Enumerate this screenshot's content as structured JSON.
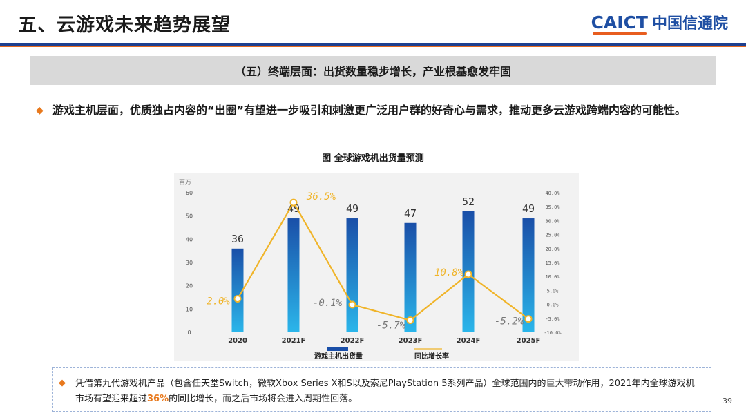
{
  "header": {
    "title": "五、云游戏未来趋势展望",
    "logo_en": "CAICT",
    "logo_cn": "中国信通院"
  },
  "banner": {
    "text": "（五）终端层面：出货数量稳步增长，产业根基愈发牢固"
  },
  "bullet": {
    "text": "游戏主机层面，优质独占内容的“出圈”有望进一步吸引和刺激更广泛用户群的好奇心与需求，推动更多云游戏跨端内容的可能性。"
  },
  "figure": {
    "caption": "图  全球游戏机出货量预测"
  },
  "colors": {
    "bar_top": "#1a4fa8",
    "bar_bottom": "#2bb6ea",
    "line": "#f0b429",
    "accent": "#e8791d",
    "brand": "#1f4fa3"
  },
  "chart_data": {
    "type": "bar+line",
    "categories": [
      "2020",
      "2021F",
      "2022F",
      "2023F",
      "2024F",
      "2025F"
    ],
    "series": [
      {
        "name": "游戏主机出货量",
        "type": "bar",
        "axis": "left",
        "values": [
          36,
          49,
          49,
          47,
          52,
          49
        ],
        "labels": [
          "36",
          "49",
          "49",
          "47",
          "52",
          "49"
        ]
      },
      {
        "name": "同比增长率",
        "type": "line",
        "axis": "right",
        "values": [
          2.0,
          36.5,
          -0.1,
          -5.7,
          10.8,
          -5.2
        ],
        "labels": [
          "2.0%",
          "36.5%",
          "-0.1%",
          "-5.7%",
          "10.8%",
          "-5.2%"
        ]
      }
    ],
    "left_axis": {
      "unit": "百万",
      "min": 0,
      "max": 60,
      "ticks": [
        "0",
        "10",
        "20",
        "30",
        "40",
        "50",
        "60"
      ]
    },
    "right_axis": {
      "min": -10,
      "max": 40,
      "ticks": [
        "-10.0%",
        "-5.0%",
        "0.0%",
        "5.0%",
        "10.0%",
        "15.0%",
        "20.0%",
        "25.0%",
        "30.0%",
        "35.0%",
        "40.0%"
      ]
    },
    "legend": {
      "position": "bottom",
      "items": [
        "游戏主机出货量",
        "同比增长率"
      ]
    }
  },
  "note": {
    "text_before": "凭借第九代游戏机产品（包含任天堂Switch，微软Xbox Series X和S以及索尼PlayStation 5系列产品）全球范围内的巨大带动作用，2021年内全球游戏机市场有望迎来超过",
    "highlight": "36%",
    "text_after": "的同比增长，而之后市场将会进入周期性回落。"
  },
  "page_number": "39"
}
